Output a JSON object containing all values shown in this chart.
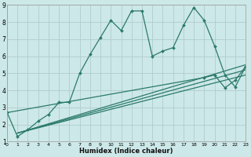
{
  "xlabel": "Humidex (Indice chaleur)",
  "xlim": [
    0,
    23
  ],
  "ylim": [
    1,
    9
  ],
  "xticks": [
    0,
    1,
    2,
    3,
    4,
    5,
    6,
    7,
    8,
    9,
    10,
    11,
    12,
    13,
    14,
    15,
    16,
    17,
    18,
    19,
    20,
    21,
    22,
    23
  ],
  "yticks": [
    1,
    2,
    3,
    4,
    5,
    6,
    7,
    8,
    9
  ],
  "background_color": "#cde8e8",
  "grid_color": "#b0cccc",
  "line_color": "#2a7a6a",
  "series": [
    {
      "x": [
        0,
        1,
        2,
        3,
        4,
        5,
        6,
        7,
        8,
        9,
        10,
        11,
        12,
        13,
        14,
        15,
        16,
        17,
        18,
        19,
        20,
        21,
        22,
        23
      ],
      "y": [
        2.7,
        1.3,
        1.7,
        2.2,
        2.6,
        3.3,
        3.3,
        5.0,
        6.1,
        7.1,
        8.1,
        7.5,
        8.65,
        8.65,
        6.0,
        6.3,
        6.5,
        7.8,
        8.85,
        8.1,
        6.6,
        4.9,
        4.2,
        5.4
      ],
      "marker": true,
      "linewidth": 0.9
    },
    {
      "x": [
        1,
        23
      ],
      "y": [
        1.5,
        5.5
      ],
      "marker": false,
      "linewidth": 0.9
    },
    {
      "x": [
        1,
        23
      ],
      "y": [
        1.5,
        5.2
      ],
      "marker": false,
      "linewidth": 0.9
    },
    {
      "x": [
        1,
        23
      ],
      "y": [
        1.5,
        4.9
      ],
      "marker": false,
      "linewidth": 0.9
    },
    {
      "x": [
        0,
        19,
        20,
        21,
        22,
        23
      ],
      "y": [
        2.7,
        4.75,
        4.9,
        4.15,
        4.6,
        5.4
      ],
      "marker": true,
      "linewidth": 0.9
    }
  ]
}
